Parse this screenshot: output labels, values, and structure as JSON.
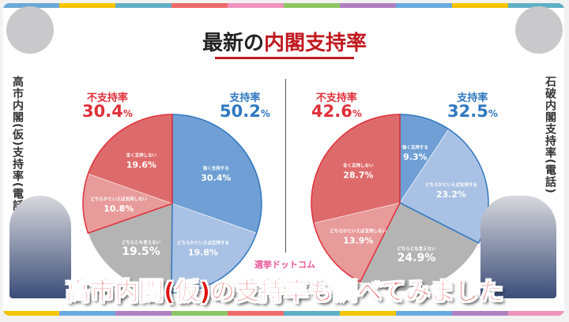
{
  "title": {
    "prefix": "最新の",
    "highlight": "内閣支持率"
  },
  "side_left": "高市内閣(仮)支持率(電話)",
  "side_right": "石破内閣支持率(電話)",
  "caption": "高市内閣(仮)の支持率も調べてみました",
  "logo": "選挙ドットコム",
  "colors": {
    "strong_support": "#6f9fd4",
    "somewhat_support": "#a9c1e4",
    "neutral": "#b4b4b4",
    "somewhat_not": "#e89b9b",
    "not_at_all": "#de6b6b",
    "support": "#2f78c0",
    "not_support": "#e0303a"
  },
  "chart_data": [
    {
      "type": "pie",
      "name": "高市内閣(仮)",
      "support": {
        "label": "支持率",
        "value": "50.2",
        "unit": "%"
      },
      "not_support": {
        "label": "不支持率",
        "value": "30.4",
        "unit": "%"
      },
      "slices": [
        {
          "label": "強く支持する",
          "value": 30.4,
          "text": "30.4",
          "color": "strong_support"
        },
        {
          "label": "どちらかといえば支持する",
          "value": 19.8,
          "text": "19.8",
          "color": "somewhat_support"
        },
        {
          "label": "どちらとも言えない",
          "value": 19.5,
          "text": "19.5",
          "color": "neutral"
        },
        {
          "label": "どちらかといえば支持しない",
          "value": 10.8,
          "text": "10.8",
          "color": "somewhat_not"
        },
        {
          "label": "全く支持しない",
          "value": 19.6,
          "text": "19.6",
          "color": "not_at_all"
        }
      ]
    },
    {
      "type": "pie",
      "name": "石破内閣",
      "support": {
        "label": "支持率",
        "value": "32.5",
        "unit": "%"
      },
      "not_support": {
        "label": "不支持率",
        "value": "42.6",
        "unit": "%"
      },
      "slices": [
        {
          "label": "強く支持する",
          "value": 9.3,
          "text": "9.3",
          "color": "strong_support"
        },
        {
          "label": "どちらかといえば支持する",
          "value": 23.2,
          "text": "23.2",
          "color": "somewhat_support"
        },
        {
          "label": "どちらとも言えない",
          "value": 24.9,
          "text": "24.9",
          "color": "neutral"
        },
        {
          "label": "どちらかといえば支持しない",
          "value": 13.9,
          "text": "13.9",
          "color": "somewhat_not"
        },
        {
          "label": "全く支持しない",
          "value": 28.7,
          "text": "28.7",
          "color": "not_at_all"
        }
      ]
    }
  ]
}
